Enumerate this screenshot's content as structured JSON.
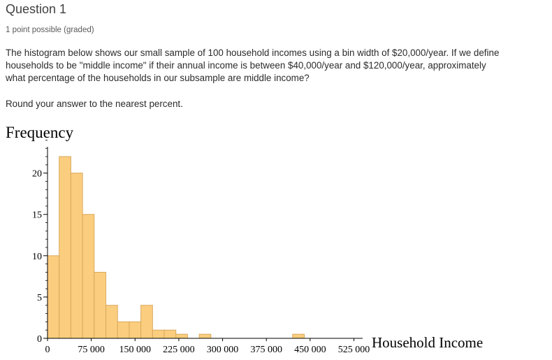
{
  "question": {
    "title": "Question 1",
    "points": "1 point possible (graded)",
    "text": "The histogram below shows our small sample of 100 household incomes using a bin width of $20,000/year. If we define households to be \"middle income\" if their annual income is between $40,000/year and $120,000/year, approximately what percentage of the households in our subsample are middle income?",
    "instruction": "Round your answer to the nearest percent."
  },
  "colors": {
    "bar_fill": "#fbcd7f",
    "bar_stroke": "#d9a95c",
    "axis": "#000000"
  },
  "chart_data": {
    "type": "bar",
    "title": "",
    "ylabel": "Frequency",
    "xlabel": "Household Income",
    "bin_width": 20000,
    "bins_start": [
      0,
      20000,
      40000,
      60000,
      80000,
      100000,
      120000,
      140000,
      160000,
      180000,
      200000,
      220000,
      260000,
      420000
    ],
    "values": [
      10,
      22,
      20,
      15,
      8,
      4,
      2,
      2,
      4,
      1,
      1,
      0.5,
      0.5,
      0.5
    ],
    "xlim": [
      0,
      540000
    ],
    "ylim": [
      0,
      22
    ],
    "x_ticks": [
      0,
      75000,
      150000,
      225000,
      300000,
      375000,
      450000,
      525000
    ],
    "x_tick_labels": [
      "0",
      "75 000",
      "150 000",
      "225 000",
      "300 000",
      "375 000",
      "450 000",
      "525 000"
    ],
    "y_ticks": [
      0,
      5,
      10,
      15,
      20
    ],
    "y_tick_labels": [
      "0",
      "5",
      "10",
      "15",
      "20"
    ]
  }
}
